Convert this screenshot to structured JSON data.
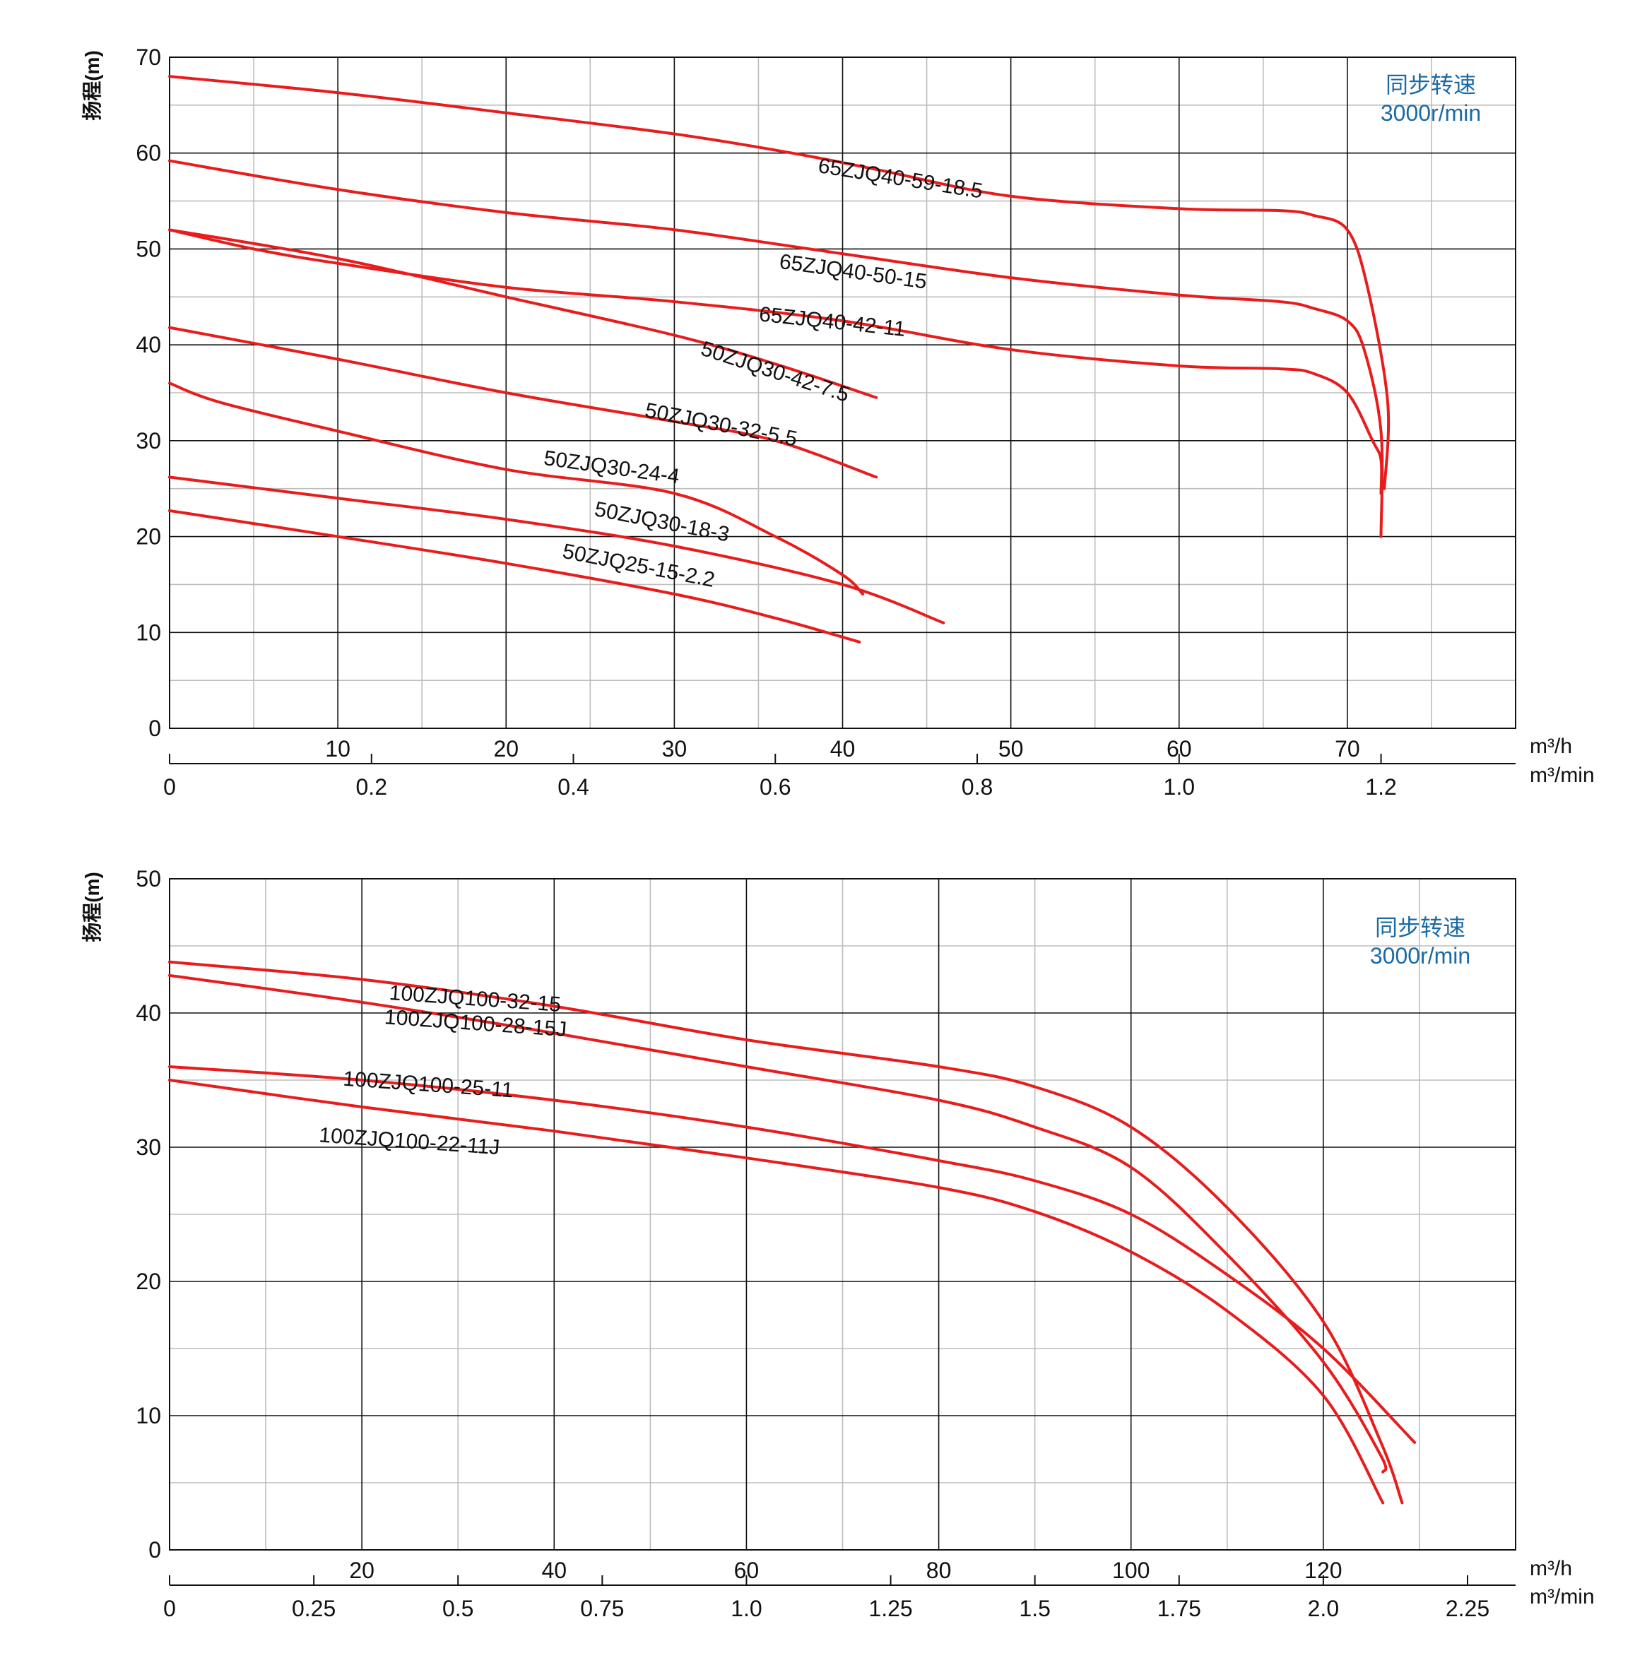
{
  "colors": {
    "curve": "#e81c1c",
    "grid_major": "#111111",
    "grid_minor": "#bdbdbd",
    "annotation": "#1b6aa5",
    "text": "#111111"
  },
  "chart_data": [
    {
      "type": "line",
      "ylabel": "扬程(m)",
      "x_unit_primary": "m³/h",
      "x_unit_secondary": "m³/min",
      "xlim": [
        0,
        80
      ],
      "ylim": [
        0,
        70
      ],
      "x_ticks_primary": [
        "10",
        "20",
        "30",
        "40",
        "50",
        "60",
        "70"
      ],
      "x_ticks_secondary": [
        "0",
        "0.2",
        "0.4",
        "0.6",
        "0.8",
        "1.0",
        "1.2"
      ],
      "y_ticks": [
        "0",
        "10",
        "20",
        "30",
        "40",
        "50",
        "60",
        "70"
      ],
      "annotation": [
        "同步转速",
        "3000r/min"
      ],
      "series": [
        {
          "name": "65ZJQ40-59-18.5",
          "points": [
            [
              0,
              68
            ],
            [
              10,
              66.3
            ],
            [
              20,
              64.2
            ],
            [
              30,
              62
            ],
            [
              37,
              60
            ],
            [
              42,
              58.3
            ],
            [
              50,
              55.5
            ],
            [
              60,
              54.2
            ],
            [
              66,
              54
            ],
            [
              68,
              53.5
            ],
            [
              70,
              52
            ],
            [
              71.2,
              46
            ],
            [
              72.4,
              34
            ],
            [
              72.2,
              25
            ]
          ]
        },
        {
          "name": "65ZJQ40-50-15",
          "points": [
            [
              0,
              59.2
            ],
            [
              10,
              56.2
            ],
            [
              20,
              53.8
            ],
            [
              30,
              52
            ],
            [
              40,
              49.5
            ],
            [
              50,
              47
            ],
            [
              60,
              45.2
            ],
            [
              66,
              44.5
            ],
            [
              68,
              43.8
            ],
            [
              70,
              42.5
            ],
            [
              71,
              39.5
            ],
            [
              72,
              31
            ],
            [
              72,
              20
            ]
          ]
        },
        {
          "name": "65ZJQ40-42-11",
          "points": [
            [
              0,
              52
            ],
            [
              5,
              50
            ],
            [
              10,
              48.5
            ],
            [
              20,
              46
            ],
            [
              30,
              44.5
            ],
            [
              40,
              42.5
            ],
            [
              50,
              39.5
            ],
            [
              60,
              37.8
            ],
            [
              66,
              37.5
            ],
            [
              68,
              37
            ],
            [
              70,
              35
            ],
            [
              71.5,
              30
            ],
            [
              72,
              28
            ],
            [
              72,
              24.5
            ]
          ]
        },
        {
          "name": "50ZJQ30-42-7.5",
          "points": [
            [
              0,
              52
            ],
            [
              10,
              49
            ],
            [
              20,
              45
            ],
            [
              30,
              41
            ],
            [
              36,
              38
            ],
            [
              42,
              34.5
            ]
          ]
        },
        {
          "name": "50ZJQ30-32-5.5",
          "points": [
            [
              0,
              41.8
            ],
            [
              10,
              38.5
            ],
            [
              20,
              35
            ],
            [
              30,
              32
            ],
            [
              36,
              30
            ],
            [
              42,
              26.2
            ]
          ]
        },
        {
          "name": "50ZJQ30-24-4",
          "points": [
            [
              0,
              36
            ],
            [
              3,
              34
            ],
            [
              10,
              31
            ],
            [
              20,
              27
            ],
            [
              30,
              24.5
            ],
            [
              36,
              20
            ],
            [
              40,
              16
            ],
            [
              41.2,
              14
            ]
          ]
        },
        {
          "name": "50ZJQ30-18-3",
          "points": [
            [
              0,
              26.2
            ],
            [
              10,
              24
            ],
            [
              20,
              21.8
            ],
            [
              30,
              19
            ],
            [
              40,
              15
            ],
            [
              46,
              11
            ]
          ]
        },
        {
          "name": "50ZJQ25-15-2.2",
          "points": [
            [
              0,
              22.7
            ],
            [
              10,
              20
            ],
            [
              20,
              17.2
            ],
            [
              30,
              14
            ],
            [
              36,
              11.5
            ],
            [
              41,
              9
            ]
          ]
        }
      ],
      "labels": [
        {
          "text": "65ZJQ40-59-18.5",
          "x": 38.5,
          "y": 58,
          "angle": 9
        },
        {
          "text": "65ZJQ40-50-15",
          "x": 36.2,
          "y": 48,
          "angle": 8
        },
        {
          "text": "65ZJQ40-42-11",
          "x": 35,
          "y": 42.5,
          "angle": 6
        },
        {
          "text": "50ZJQ30-42-7.5",
          "x": 31.5,
          "y": 39,
          "angle": 18
        },
        {
          "text": "50ZJQ30-32-5.5",
          "x": 28.2,
          "y": 32.5,
          "angle": 11
        },
        {
          "text": "50ZJQ30-24-4",
          "x": 22.2,
          "y": 27.5,
          "angle": 8
        },
        {
          "text": "50ZJQ30-18-3",
          "x": 25.2,
          "y": 22.2,
          "angle": 11
        },
        {
          "text": "50ZJQ25-15-2.2",
          "x": 23.3,
          "y": 17.8,
          "angle": 11
        }
      ]
    },
    {
      "type": "line",
      "ylabel": "扬程(m)",
      "x_unit_primary": "m³/h",
      "x_unit_secondary": "m³/min",
      "xlim": [
        0,
        140
      ],
      "ylim": [
        0,
        50
      ],
      "x_ticks_primary": [
        "20",
        "40",
        "60",
        "80",
        "100",
        "120"
      ],
      "x_ticks_secondary": [
        "0",
        "0.25",
        "0.5",
        "0.75",
        "1.0",
        "1.25",
        "1.5",
        "1.75",
        "2.0",
        "2.25"
      ],
      "y_ticks": [
        "0",
        "10",
        "20",
        "30",
        "40",
        "50"
      ],
      "annotation": [
        "同步转速",
        "3000r/min"
      ],
      "series": [
        {
          "name": "100ZJQ100-32-15",
          "points": [
            [
              0,
              43.8
            ],
            [
              20,
              42.5
            ],
            [
              40,
              40.5
            ],
            [
              60,
              38
            ],
            [
              80,
              36
            ],
            [
              90,
              34.5
            ],
            [
              100,
              31.5
            ],
            [
              110,
              25.5
            ],
            [
              120,
              17
            ],
            [
              126,
              8
            ],
            [
              128.2,
              3.5
            ]
          ]
        },
        {
          "name": "100ZJQ100-28-15J",
          "points": [
            [
              0,
              42.8
            ],
            [
              20,
              40.8
            ],
            [
              40,
              38.5
            ],
            [
              60,
              36
            ],
            [
              80,
              33.5
            ],
            [
              90,
              31.5
            ],
            [
              100,
              28.5
            ],
            [
              110,
              22
            ],
            [
              120,
              14
            ],
            [
              126,
              7
            ],
            [
              126.2,
              5.8
            ]
          ]
        },
        {
          "name": "100ZJQ100-25-11",
          "points": [
            [
              0,
              36
            ],
            [
              20,
              35
            ],
            [
              40,
              33.5
            ],
            [
              60,
              31.5
            ],
            [
              80,
              29
            ],
            [
              90,
              27.5
            ],
            [
              100,
              25
            ],
            [
              110,
              20.5
            ],
            [
              120,
              15
            ],
            [
              129.5,
              8
            ]
          ]
        },
        {
          "name": "100ZJQ100-22-11J",
          "points": [
            [
              0,
              35
            ],
            [
              20,
              33
            ],
            [
              40,
              31.2
            ],
            [
              60,
              29.2
            ],
            [
              80,
              27
            ],
            [
              90,
              25.2
            ],
            [
              100,
              22.2
            ],
            [
              110,
              17.8
            ],
            [
              120,
              11.5
            ],
            [
              126.2,
              3.5
            ]
          ]
        }
      ],
      "labels": [
        {
          "text": "100ZJQ100-32-15",
          "x": 22.8,
          "y": 41,
          "angle": 4
        },
        {
          "text": "100ZJQ100-28-15J",
          "x": 22.3,
          "y": 39.2,
          "angle": 4
        },
        {
          "text": "100ZJQ100-25-11",
          "x": 18,
          "y": 34.6,
          "angle": 4
        },
        {
          "text": "100ZJQ100-22-11J",
          "x": 15.5,
          "y": 30.4,
          "angle": 4
        }
      ]
    }
  ]
}
